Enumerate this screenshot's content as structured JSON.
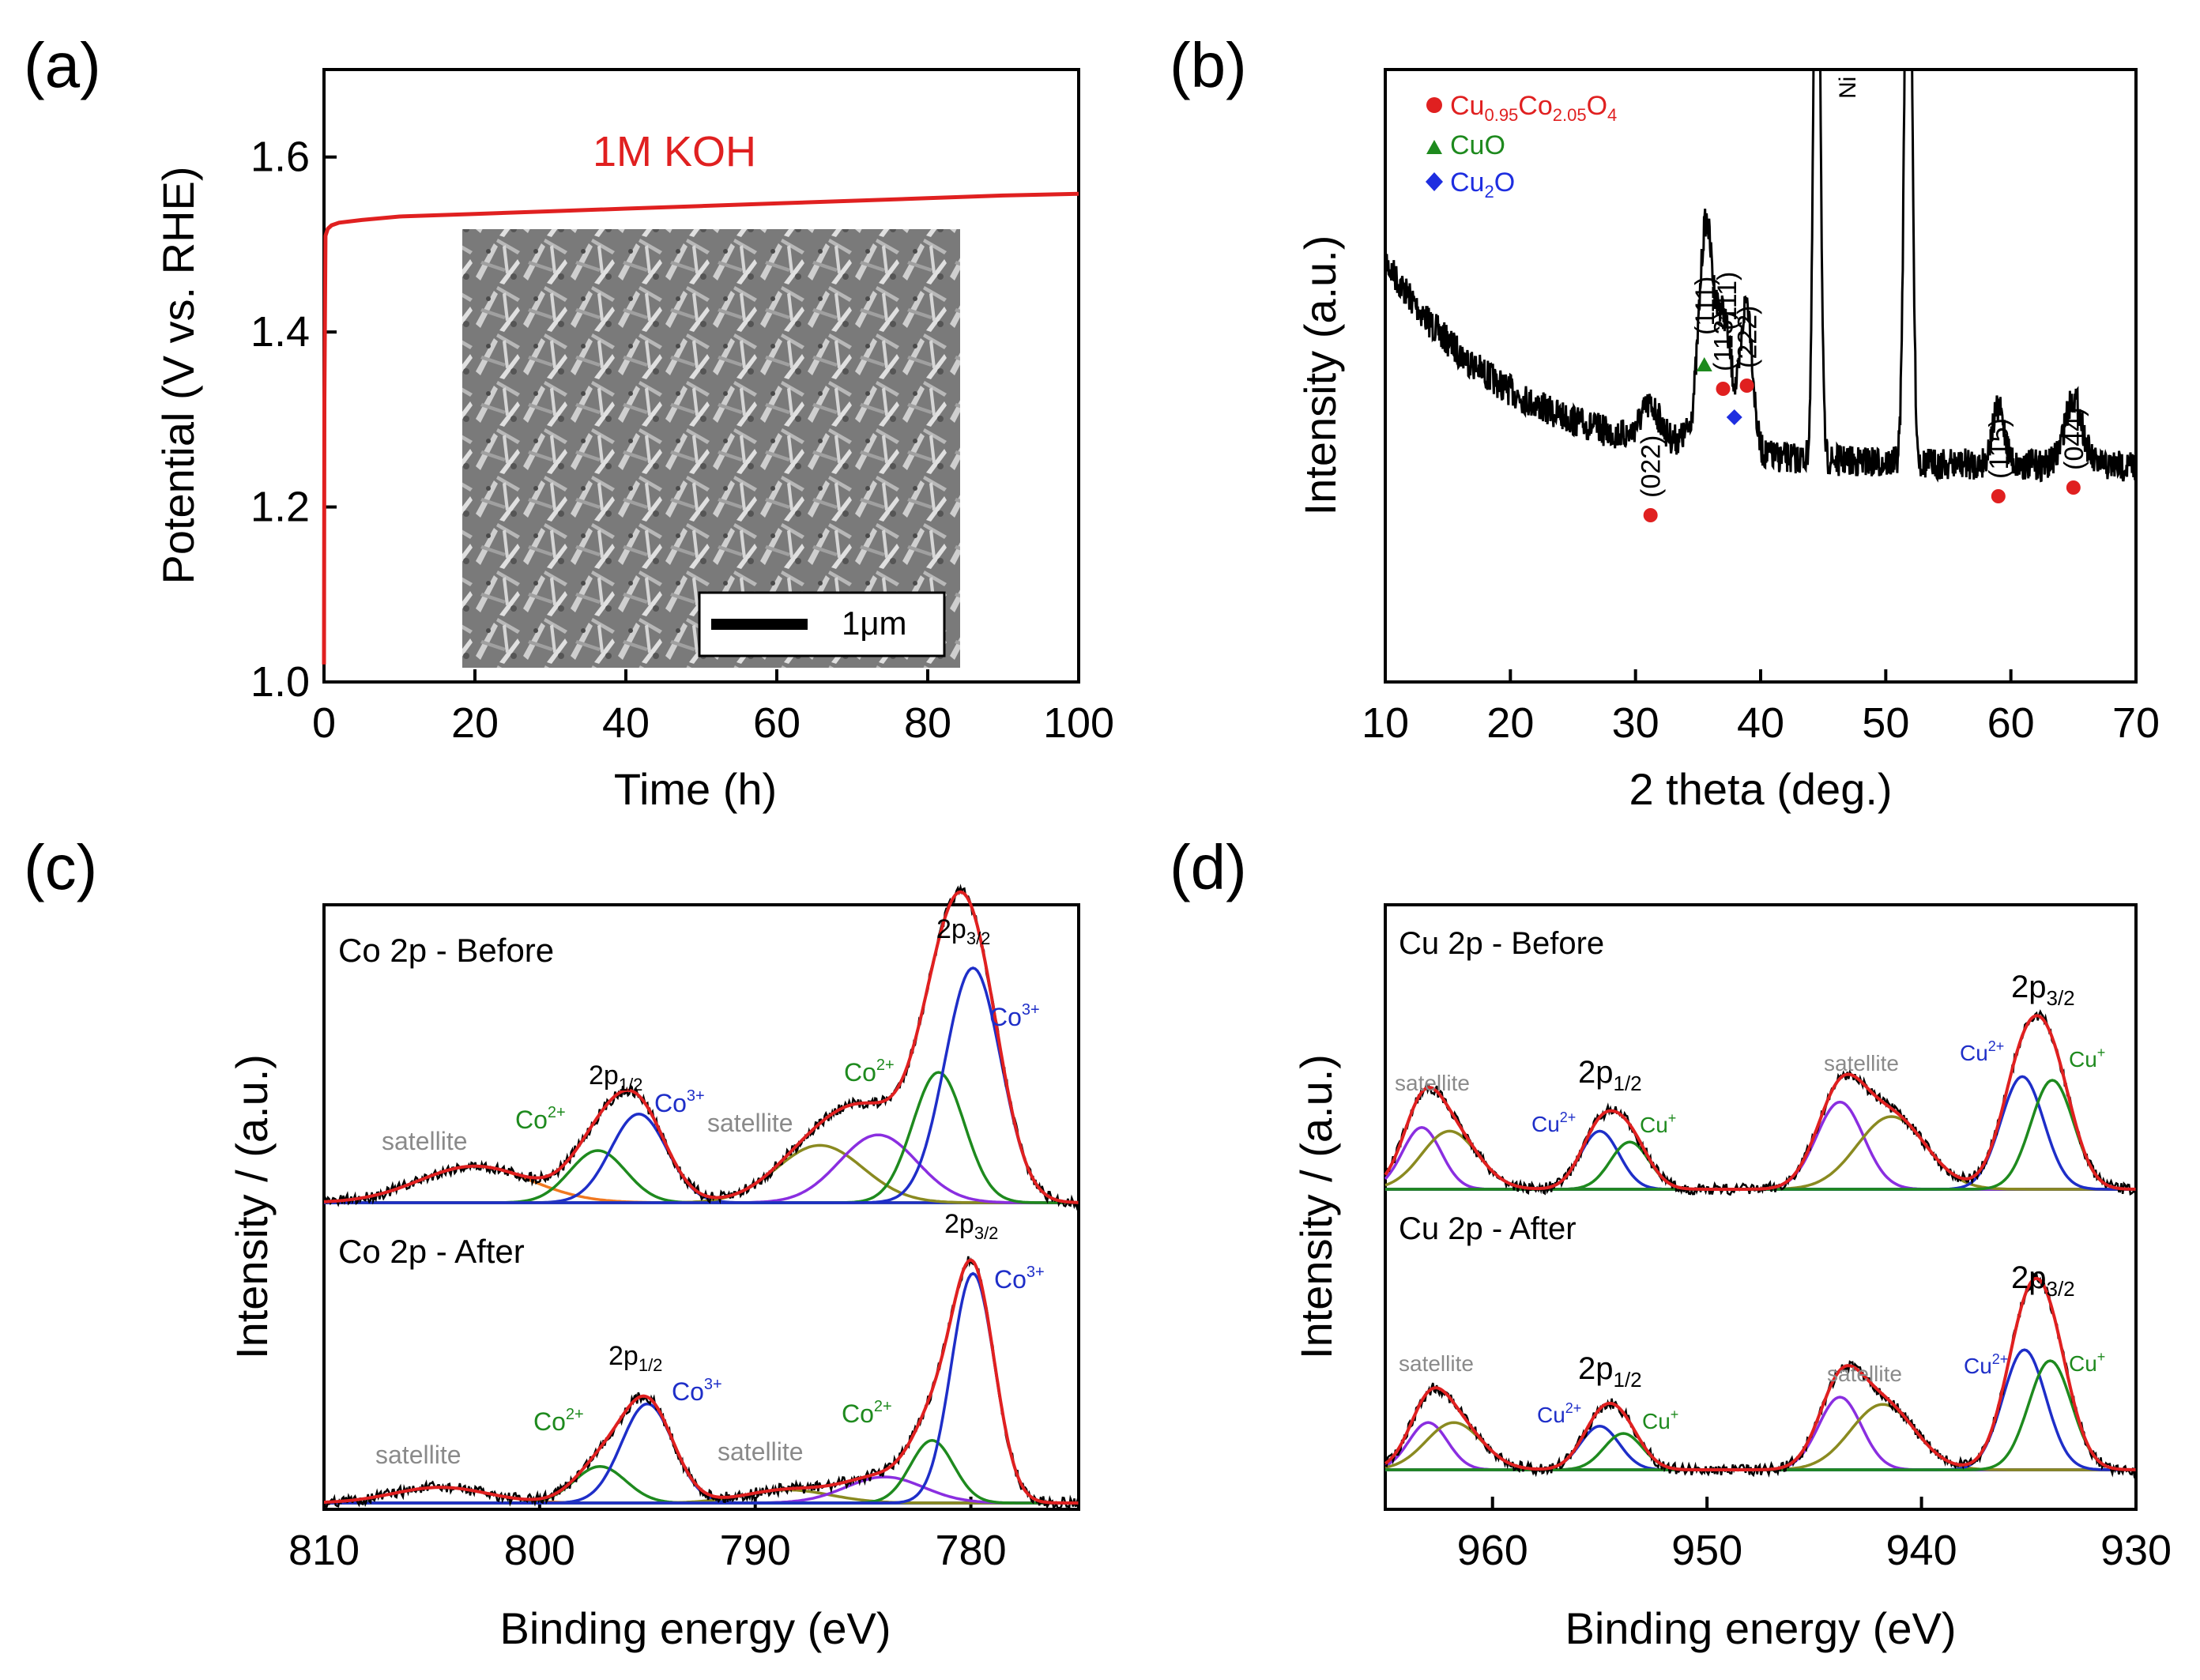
{
  "panels": {
    "a": {
      "label": "(a)",
      "chart_data": {
        "type": "line",
        "xlabel": "Time (h)",
        "ylabel": "Potential (V vs. RHE)",
        "xlim": [
          0,
          100
        ],
        "ylim": [
          1.0,
          1.7
        ],
        "xticks": [
          "0",
          "20",
          "40",
          "60",
          "80",
          "100"
        ],
        "xtick_values": [
          0,
          20,
          40,
          60,
          80,
          100
        ],
        "yticks": [
          "1.0",
          "1.2",
          "1.4",
          "1.6"
        ],
        "ytick_values": [
          1.0,
          1.2,
          1.4,
          1.6
        ],
        "annotation": "1M KOH",
        "series": [
          {
            "name": "1M KOH",
            "color": "#e02020",
            "x": [
              0,
              0.05,
              0.2,
              0.5,
              1,
              2,
              5,
              10,
              20,
              30,
              40,
              50,
              60,
              70,
              80,
              90,
              100
            ],
            "y": [
              1.02,
              1.32,
              1.51,
              1.518,
              1.522,
              1.525,
              1.528,
              1.532,
              1.535,
              1.538,
              1.541,
              1.544,
              1.547,
              1.55,
              1.553,
              1.556,
              1.558
            ]
          }
        ],
        "inset": {
          "type": "SEM micrograph",
          "scalebar_label": "1μm"
        }
      }
    },
    "b": {
      "label": "(b)",
      "chart_data": {
        "type": "line",
        "xlabel": "2 theta (deg.)",
        "ylabel": "Intensity (a.u.)",
        "xlim": [
          10,
          70
        ],
        "xticks": [
          "10",
          "20",
          "30",
          "40",
          "50",
          "60",
          "70"
        ],
        "xtick_values": [
          10,
          20,
          30,
          40,
          50,
          60,
          70
        ],
        "legend": [
          {
            "symbol": "circle",
            "color": "#e02020",
            "text_main": "Cu",
            "sub1": "0.95",
            "mid": "Co",
            "sub2": "2.05",
            "tail": "O",
            "sub3": "4"
          },
          {
            "symbol": "triangle",
            "color": "#1e8a1e",
            "text_main": "CuO"
          },
          {
            "symbol": "diamond",
            "color": "#1e2ee0",
            "text_main": "Cu",
            "sub1": "2",
            "tail": "O"
          }
        ],
        "peaks": [
          {
            "x": 31.2,
            "label": "(022)",
            "marker": "circle"
          },
          {
            "x": 35.5,
            "label": "(111)",
            "marker": "triangle"
          },
          {
            "x": 37.0,
            "label": "(113)",
            "marker": "circle"
          },
          {
            "x": 37.9,
            "label": "(111)",
            "marker": "diamond"
          },
          {
            "x": 38.9,
            "label": "(222)",
            "marker": "circle"
          },
          {
            "x": 59.0,
            "label": "(115)",
            "marker": "circle"
          },
          {
            "x": 65.0,
            "label": "(044)",
            "marker": "circle"
          }
        ],
        "substrate_label": "Ni",
        "substrate_peaks": [
          44.5,
          51.8
        ]
      }
    },
    "c": {
      "label": "(c)",
      "chart_data": {
        "type": "line",
        "xlabel": "Binding energy (eV)",
        "ylabel": "Intensity / (a.u.)",
        "xlim": [
          810,
          775
        ],
        "xticks": [
          "810",
          "800",
          "790",
          "780"
        ],
        "xtick_values": [
          810,
          800,
          790,
          780
        ],
        "spectra": [
          {
            "title": "Co 2p - Before",
            "components": [
              {
                "name": "satellite",
                "center": 803,
                "amp": 0.14,
                "width": 2.6,
                "color": "#f07820"
              },
              {
                "name": "Co2+",
                "center": 797.3,
                "amp": 0.2,
                "width": 1.3,
                "color": "#1e8a1e"
              },
              {
                "name": "Co3+",
                "center": 795.4,
                "amp": 0.34,
                "width": 1.3,
                "color": "#1e2ec8"
              },
              {
                "name": "satellite",
                "center": 787,
                "amp": 0.22,
                "width": 2.0,
                "color": "#8a8a20"
              },
              {
                "name": "Co2+",
                "center": 784.3,
                "amp": 0.26,
                "width": 1.8,
                "color": "#8a2ee0"
              },
              {
                "name": "Co2+",
                "center": 781.5,
                "amp": 0.5,
                "width": 1.2,
                "color": "#1e8a1e"
              },
              {
                "name": "Co3+",
                "center": 779.9,
                "amp": 0.9,
                "width": 1.3,
                "color": "#1e2ec8"
              }
            ],
            "labels": {
              "two_p12": "1/2",
              "two_p32": "3/2",
              "co2_left": "2+",
              "co3_left": "3+",
              "sat_left": "satellite",
              "sat_mid": "satellite",
              "co2_right": "2+",
              "co3_right": "3+"
            }
          },
          {
            "title": "Co 2p - After",
            "components": [
              {
                "name": "satellite",
                "center": 804.6,
                "amp": 0.06,
                "width": 2.2,
                "color": "#f07820"
              },
              {
                "name": "Co2+",
                "center": 797.2,
                "amp": 0.14,
                "width": 1.2,
                "color": "#1e8a1e"
              },
              {
                "name": "Co3+",
                "center": 795.0,
                "amp": 0.38,
                "width": 1.2,
                "color": "#1e2ec8"
              },
              {
                "name": "satellite",
                "center": 788.5,
                "amp": 0.05,
                "width": 2.0,
                "color": "#8a8a20"
              },
              {
                "name": "Co2+",
                "center": 784.0,
                "amp": 0.1,
                "width": 1.8,
                "color": "#8a2ee0"
              },
              {
                "name": "Co2+",
                "center": 781.8,
                "amp": 0.24,
                "width": 1.0,
                "color": "#1e8a1e"
              },
              {
                "name": "Co3+",
                "center": 779.9,
                "amp": 0.88,
                "width": 1.0,
                "color": "#1e2ec8"
              }
            ]
          }
        ]
      }
    },
    "d": {
      "label": "(d)",
      "chart_data": {
        "type": "line",
        "xlabel": "Binding energy (eV)",
        "ylabel": "Intensity / (a.u.)",
        "xlim": [
          965,
          930
        ],
        "xticks": [
          "960",
          "950",
          "940",
          "930"
        ],
        "xtick_values": [
          960,
          950,
          940,
          930
        ],
        "spectra": [
          {
            "title": "Cu 2p - Before",
            "components": [
              {
                "name": "satellite",
                "center": 963.3,
                "amp": 0.34,
                "width": 0.9,
                "color": "#8a2ee0"
              },
              {
                "name": "satellite",
                "center": 962.0,
                "amp": 0.32,
                "width": 1.3,
                "color": "#8a8a20"
              },
              {
                "name": "Cu2+",
                "center": 955.0,
                "amp": 0.32,
                "width": 0.9,
                "color": "#1e2ec8"
              },
              {
                "name": "Cu+",
                "center": 953.6,
                "amp": 0.26,
                "width": 0.9,
                "color": "#1e8a1e"
              },
              {
                "name": "satellite",
                "center": 943.8,
                "amp": 0.48,
                "width": 1.1,
                "color": "#8a2ee0"
              },
              {
                "name": "satellite",
                "center": 941.4,
                "amp": 0.4,
                "width": 1.6,
                "color": "#8a8a20"
              },
              {
                "name": "Cu2+",
                "center": 935.3,
                "amp": 0.62,
                "width": 1.0,
                "color": "#1e2ec8"
              },
              {
                "name": "Cu+",
                "center": 933.9,
                "amp": 0.6,
                "width": 1.0,
                "color": "#1e8a1e"
              }
            ]
          },
          {
            "title": "Cu 2p - After",
            "components": [
              {
                "name": "satellite",
                "center": 963.0,
                "amp": 0.26,
                "width": 0.9,
                "color": "#8a2ee0"
              },
              {
                "name": "satellite",
                "center": 961.8,
                "amp": 0.26,
                "width": 1.3,
                "color": "#8a8a20"
              },
              {
                "name": "Cu2+",
                "center": 955.0,
                "amp": 0.24,
                "width": 0.9,
                "color": "#1e2ec8"
              },
              {
                "name": "Cu+",
                "center": 953.9,
                "amp": 0.2,
                "width": 0.9,
                "color": "#1e8a1e"
              },
              {
                "name": "satellite",
                "center": 943.8,
                "amp": 0.4,
                "width": 1.0,
                "color": "#8a2ee0"
              },
              {
                "name": "satellite",
                "center": 941.8,
                "amp": 0.36,
                "width": 1.5,
                "color": "#8a8a20"
              },
              {
                "name": "Cu2+",
                "center": 935.2,
                "amp": 0.66,
                "width": 1.0,
                "color": "#1e2ec8"
              },
              {
                "name": "Cu+",
                "center": 934.0,
                "amp": 0.6,
                "width": 1.0,
                "color": "#1e8a1e"
              }
            ]
          }
        ],
        "labels": {
          "two_p": "2p",
          "p12": "1/2",
          "p32": "3/2",
          "satellite": "satellite",
          "cu2": "Cu",
          "cu2_sup": "2+",
          "cu1": "Cu",
          "cu1_sup": "+"
        }
      }
    }
  },
  "colors": {
    "fit_envelope": "#e02020",
    "data": "#000000",
    "baseline": "#8a2ee0",
    "gray_label": "#8a8a8a",
    "blue_label": "#1e2ec8",
    "green_label": "#1e8a1e",
    "red_label": "#e02020"
  }
}
